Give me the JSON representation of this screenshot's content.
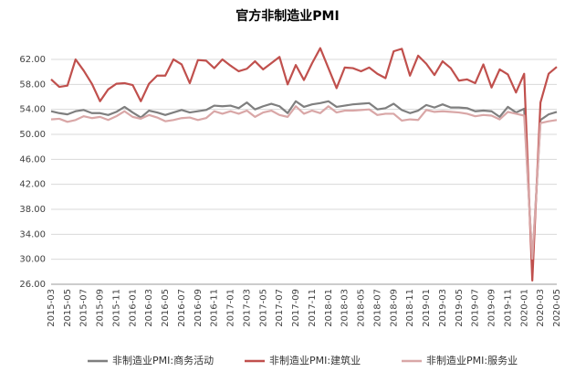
{
  "chart_data": {
    "type": "line",
    "title": "官方非制造业PMI",
    "categories": [
      "2015-03",
      null,
      "2015-05",
      null,
      "2015-07",
      null,
      "2015-09",
      null,
      "2015-11",
      null,
      "2016-01",
      null,
      "2016-03",
      null,
      "2016-05",
      null,
      "2016-07",
      null,
      "2016-09",
      null,
      "2016-11",
      null,
      "2017-01",
      null,
      "2017-03",
      null,
      "2017-05",
      null,
      "2017-07",
      null,
      "2017-09",
      null,
      "2017-11",
      null,
      "2018-01",
      null,
      "2018-03",
      null,
      "2018-05",
      null,
      "2018-07",
      null,
      "2018-09",
      null,
      "2018-11",
      null,
      "2019-01",
      null,
      "2019-03",
      null,
      "2019-05",
      null,
      "2019-07",
      null,
      "2019-09",
      null,
      "2019-11",
      null,
      "2020-01",
      null,
      "2020-03",
      null,
      "2020-05"
    ],
    "series": [
      {
        "name": "非制造业PMI:商务活动",
        "color": "#7f7f7f",
        "values": [
          53.7,
          53.4,
          53.2,
          53.7,
          53.9,
          53.4,
          53.4,
          53.1,
          53.6,
          54.4,
          53.5,
          52.7,
          53.8,
          53.5,
          53.1,
          53.5,
          53.9,
          53.5,
          53.7,
          53.9,
          54.6,
          54.5,
          54.6,
          54.2,
          55.1,
          54.0,
          54.5,
          54.9,
          54.5,
          53.4,
          55.3,
          54.4,
          54.8,
          55.0,
          55.3,
          54.4,
          54.6,
          54.8,
          54.9,
          55.0,
          54.0,
          54.2,
          54.9,
          53.9,
          53.4,
          53.8,
          54.7,
          54.3,
          54.8,
          54.3,
          54.3,
          54.2,
          53.7,
          53.8,
          53.7,
          52.8,
          54.4,
          53.5,
          54.1,
          29.6,
          52.3,
          53.2,
          53.6
        ]
      },
      {
        "name": "非制造业PMI:建筑业",
        "color": "#c0504d",
        "values": [
          58.8,
          57.6,
          57.8,
          62.0,
          60.2,
          58.1,
          55.3,
          57.2,
          58.1,
          58.2,
          57.9,
          55.3,
          58.1,
          59.4,
          59.4,
          62.0,
          61.2,
          58.2,
          61.9,
          61.8,
          60.6,
          62.0,
          61.0,
          60.1,
          60.5,
          61.7,
          60.4,
          61.4,
          62.4,
          58.0,
          61.1,
          58.7,
          61.4,
          63.8,
          60.6,
          57.4,
          60.7,
          60.6,
          60.1,
          60.7,
          59.7,
          59.0,
          63.3,
          63.7,
          59.4,
          62.6,
          61.3,
          59.5,
          61.7,
          60.6,
          58.6,
          58.8,
          58.2,
          61.2,
          57.5,
          60.4,
          59.6,
          56.7,
          59.7,
          26.6,
          55.1,
          59.7,
          60.8
        ]
      },
      {
        "name": "非制造业PMI:服务业",
        "color": "#d9a7a7",
        "values": [
          52.4,
          52.5,
          52.0,
          52.3,
          52.9,
          52.6,
          52.8,
          52.3,
          52.9,
          53.7,
          52.8,
          52.5,
          53.1,
          52.7,
          52.1,
          52.3,
          52.6,
          52.7,
          52.3,
          52.6,
          53.7,
          53.3,
          53.7,
          53.3,
          53.8,
          52.8,
          53.5,
          53.8,
          53.1,
          52.8,
          54.5,
          53.3,
          53.8,
          53.4,
          54.5,
          53.5,
          53.8,
          53.8,
          53.9,
          54.0,
          53.1,
          53.3,
          53.3,
          52.2,
          52.4,
          52.3,
          53.9,
          53.6,
          53.7,
          53.6,
          53.5,
          53.3,
          52.9,
          53.1,
          53.0,
          52.4,
          53.6,
          53.3,
          53.0,
          30.1,
          51.8,
          52.1,
          52.3
        ]
      }
    ],
    "ylim": [
      26,
      62
    ],
    "yticks": [
      {
        "value": 26,
        "label": "26.00"
      },
      {
        "value": 30,
        "label": "30.00"
      },
      {
        "value": 34,
        "label": "34.00"
      },
      {
        "value": 38,
        "label": "38.00"
      },
      {
        "value": 42,
        "label": "42.00"
      },
      {
        "value": 46,
        "label": "46.00"
      },
      {
        "value": 50,
        "label": "50.00"
      },
      {
        "value": 54,
        "label": "54.00"
      },
      {
        "value": 58,
        "label": "58.00"
      },
      {
        "value": 62,
        "label": "62.00"
      }
    ],
    "grid": true
  }
}
